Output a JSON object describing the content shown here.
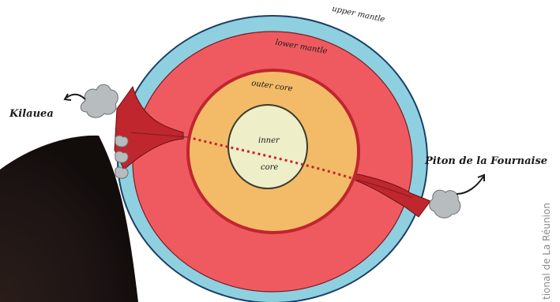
{
  "labels": {
    "upper_mantle": "upper mantle",
    "lower_mantle": "lower mantle",
    "outer_core": "outer core",
    "inner_line1": "inner",
    "inner_line2": "core",
    "kilauea": "Kilauea",
    "piton": "Piton de la Fournaise"
  },
  "credit": "tional de La Réunion",
  "colors": {
    "upper_mantle": "#8fd0e0",
    "lower_mantle": "#ef5a60",
    "outer_core": "#f3bb68",
    "inner_core": "#eeeec8",
    "plume": "#c0262d",
    "volcano": "#b7bcbf",
    "corner": "#1c1413"
  }
}
